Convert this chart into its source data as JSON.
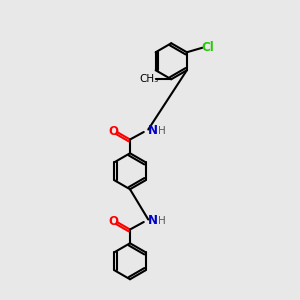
{
  "bg_color": "#e8e8e8",
  "bond_color": "#000000",
  "n_color": "#0000CC",
  "o_color": "#FF0000",
  "cl_color": "#22CC00",
  "lw": 1.5,
  "ring_r": 0.72,
  "xlim": [
    0,
    10
  ],
  "ylim": [
    0,
    12
  ],
  "figsize": [
    3.0,
    3.0
  ],
  "dpi": 100
}
